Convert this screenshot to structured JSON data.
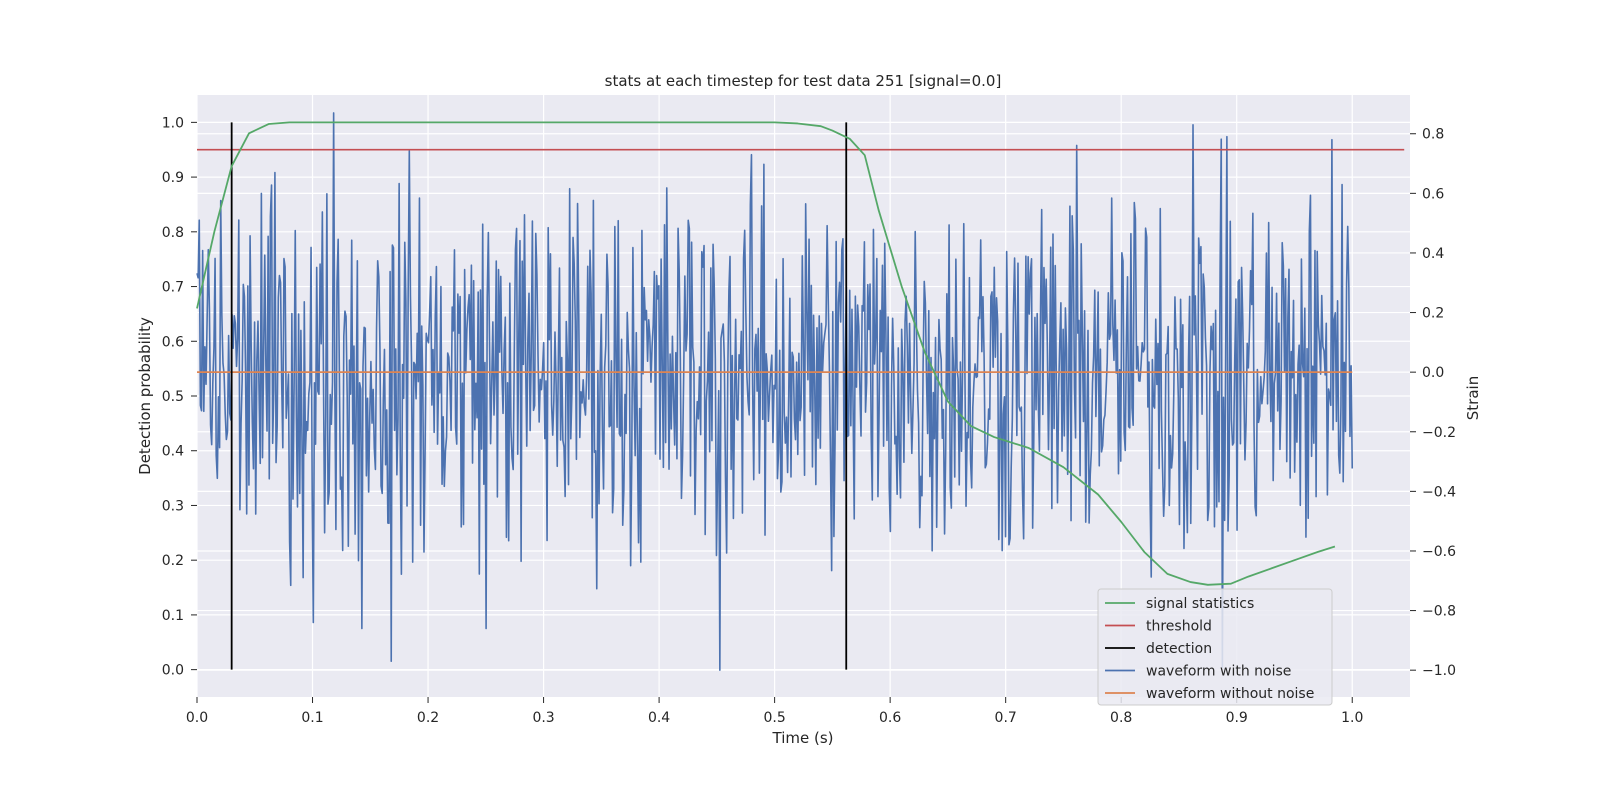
{
  "chart_data": {
    "type": "line",
    "title": "stats at each timestep for test data 251 [signal=0.0]",
    "xlabel": "Time (s)",
    "ylabel_left": "Detection probability",
    "ylabel_right": "Strain",
    "xlim": [
      0.0,
      1.05
    ],
    "ylim_left": [
      -0.05,
      1.05
    ],
    "ylim_right": [
      -1.09,
      0.93
    ],
    "x_ticks": [
      "0.0",
      "0.1",
      "0.2",
      "0.3",
      "0.4",
      "0.5",
      "0.6",
      "0.7",
      "0.8",
      "0.9",
      "1.0"
    ],
    "y_ticks_left": [
      "0.0",
      "0.1",
      "0.2",
      "0.3",
      "0.4",
      "0.5",
      "0.6",
      "0.7",
      "0.8",
      "0.9",
      "1.0"
    ],
    "y_ticks_right": [
      "−1.0",
      "−0.8",
      "−0.6",
      "−0.4",
      "−0.2",
      "0.0",
      "0.2",
      "0.4",
      "0.6",
      "0.8"
    ],
    "grid": true,
    "legend_position": "lower-right",
    "colors": {
      "signal_statistics": "#55a868",
      "threshold": "#c44e52",
      "detection": "#000000",
      "waveform_with_noise": "#4c72b0",
      "waveform_without_noise": "#dd8452",
      "plot_background": "#eaeaf2",
      "grid": "#ffffff"
    },
    "series": [
      {
        "name": "signal statistics",
        "axis": "left",
        "x": [
          0.0,
          0.015,
          0.03,
          0.045,
          0.062,
          0.08,
          0.1,
          0.15,
          0.2,
          0.3,
          0.4,
          0.5,
          0.52,
          0.54,
          0.55,
          0.565,
          0.578,
          0.59,
          0.61,
          0.63,
          0.65,
          0.67,
          0.69,
          0.72,
          0.75,
          0.78,
          0.8,
          0.82,
          0.84,
          0.86,
          0.875,
          0.895,
          0.91,
          0.93,
          0.95,
          0.97,
          0.985
        ],
        "y": [
          0.66,
          0.8,
          0.92,
          0.98,
          0.997,
          1.0,
          1.0,
          1.0,
          1.0,
          1.0,
          1.0,
          1.0,
          0.998,
          0.993,
          0.985,
          0.97,
          0.94,
          0.84,
          0.7,
          0.58,
          0.49,
          0.445,
          0.425,
          0.405,
          0.37,
          0.32,
          0.27,
          0.215,
          0.175,
          0.16,
          0.155,
          0.157,
          0.17,
          0.185,
          0.2,
          0.215,
          0.225
        ]
      },
      {
        "name": "threshold",
        "axis": "left",
        "x": [
          0.0,
          1.045
        ],
        "y": [
          0.95,
          0.95
        ]
      },
      {
        "name": "detection",
        "axis": "left",
        "x": [
          0.03,
          0.562
        ],
        "y_range": [
          0.0,
          1.0
        ]
      },
      {
        "name": "waveform with noise",
        "axis": "right",
        "x_range": [
          0.0,
          1.0
        ],
        "samples": 1024,
        "y_range": [
          -1.0,
          0.87
        ],
        "marked_values": [
          {
            "x": 0.118,
            "y": 0.87
          },
          {
            "x": 0.862,
            "y": 0.83
          },
          {
            "x": 0.453,
            "y": -1.0
          },
          {
            "x": 0.888,
            "y": -0.99
          },
          {
            "x": 0.168,
            "y": -0.97
          },
          {
            "x": 0.143,
            "y": -0.86
          },
          {
            "x": 0.25,
            "y": -0.86
          },
          {
            "x": 0.101,
            "y": -0.84
          },
          {
            "x": 0.982,
            "y": 0.78
          }
        ]
      },
      {
        "name": "waveform without noise",
        "axis": "right",
        "x": [
          0.0,
          1.0
        ],
        "y": [
          0.0,
          0.0
        ]
      }
    ],
    "legend": [
      "signal statistics",
      "threshold",
      "detection",
      "waveform with noise",
      "waveform without noise"
    ]
  }
}
